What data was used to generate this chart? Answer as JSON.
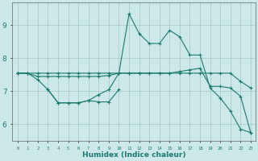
{
  "xlabel": "Humidex (Indice chaleur)",
  "background_color": "#cce8e8",
  "grid_color": "#aacccc",
  "line_color": "#1a7a6e",
  "xlim": [
    -0.5,
    23.5
  ],
  "ylim": [
    5.5,
    9.7
  ],
  "yticks": [
    6,
    7,
    8,
    9
  ],
  "xticks": [
    0,
    1,
    2,
    3,
    4,
    5,
    6,
    7,
    8,
    9,
    10,
    11,
    12,
    13,
    14,
    15,
    16,
    17,
    18,
    19,
    20,
    21,
    22,
    23
  ],
  "line1_x": [
    0,
    1,
    2,
    3,
    4,
    5,
    6,
    7,
    8,
    9,
    10,
    11,
    12,
    13,
    14,
    15,
    16,
    17,
    18,
    19,
    20,
    21,
    22,
    23
  ],
  "line1_y": [
    7.55,
    7.55,
    7.45,
    7.45,
    7.45,
    7.45,
    7.45,
    7.45,
    7.45,
    7.48,
    7.55,
    7.55,
    7.55,
    7.55,
    7.55,
    7.55,
    7.6,
    7.65,
    7.7,
    7.15,
    7.15,
    7.1,
    6.85,
    5.75
  ],
  "line2_x": [
    0,
    1,
    2,
    3,
    4,
    5,
    6,
    7,
    8,
    9,
    10,
    11,
    12,
    13,
    14,
    15,
    16,
    17,
    18,
    19,
    20,
    21,
    22,
    23
  ],
  "line2_y": [
    7.55,
    7.55,
    7.55,
    7.55,
    7.55,
    7.55,
    7.55,
    7.55,
    7.55,
    7.55,
    7.55,
    7.55,
    7.55,
    7.55,
    7.55,
    7.55,
    7.55,
    7.55,
    7.55,
    7.55,
    7.55,
    7.55,
    7.3,
    7.1
  ],
  "line3_x": [
    0,
    1,
    2,
    3,
    4,
    5,
    6,
    7,
    8,
    9,
    10,
    11,
    12,
    13,
    14,
    15,
    16,
    17,
    18,
    19,
    20,
    21,
    22,
    23
  ],
  "line3_y": [
    7.55,
    7.55,
    7.35,
    7.05,
    6.65,
    6.65,
    6.65,
    6.72,
    6.9,
    7.05,
    7.55,
    9.35,
    8.75,
    8.45,
    8.45,
    8.85,
    8.65,
    8.1,
    8.1,
    7.1,
    6.8,
    6.4,
    5.85,
    5.75
  ],
  "line4_x": [
    3,
    4,
    5,
    6,
    7,
    8,
    9,
    10
  ],
  "line4_y": [
    7.05,
    6.65,
    6.65,
    6.65,
    6.72,
    6.68,
    6.68,
    7.05
  ]
}
